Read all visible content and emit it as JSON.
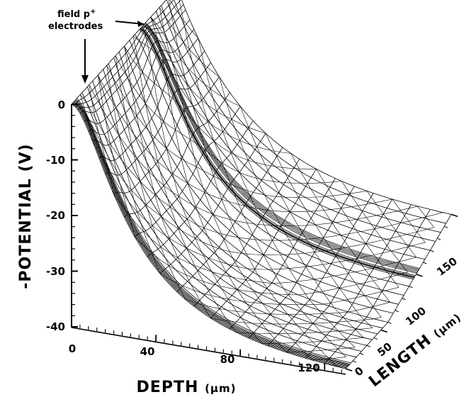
{
  "chart_data": {
    "type": "3d-surface-wireframe",
    "title": "",
    "zlabel": "-POTENTIAL (V)",
    "xlabel": "DEPTH",
    "xlabel_unit": "(µm)",
    "ylabel": "LENGTH",
    "ylabel_unit": "(µm)",
    "z_ticks": [
      "0",
      "-10",
      "-20",
      "-30",
      "-40"
    ],
    "x_ticks": [
      "0",
      "40",
      "80",
      "120"
    ],
    "y_ticks": [
      "0",
      "50",
      "100",
      "150"
    ],
    "zlim": [
      -40,
      0
    ],
    "xlim": [
      0,
      130
    ],
    "ylim": [
      0,
      150
    ],
    "annotation": {
      "line1": "field p",
      "superscript": "+",
      "line2": "electrodes"
    },
    "surface": {
      "description_values": {
        "potential_at_electrode": 0,
        "potential_far_depth_near_length": -40,
        "potential_far_depth_far_length": -33,
        "electrode_peaks_length_um": [
          0,
          100
        ]
      }
    }
  }
}
